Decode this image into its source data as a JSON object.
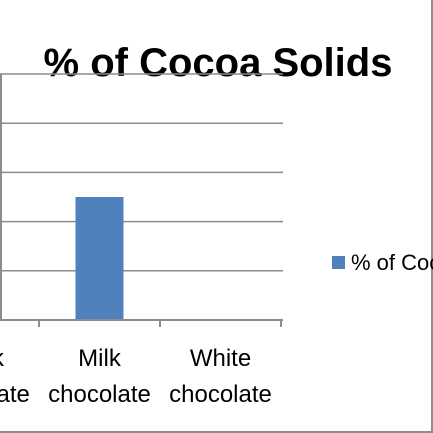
{
  "chart_data": {
    "type": "bar",
    "title": "% of Cocoa Solids",
    "categories": [
      "Dark chocolate",
      "Milk chocolate",
      "White chocolate"
    ],
    "category_lines": [
      [
        "Dark",
        "chocolate"
      ],
      [
        "Milk",
        "chocolate"
      ],
      [
        "White",
        "chocolate"
      ]
    ],
    "series": [
      {
        "name": "% of Cocoa Solids",
        "values": [
          null,
          25,
          0
        ],
        "color": "#4f81bd"
      }
    ],
    "ylim": [
      0,
      50
    ],
    "y_major_step": 10,
    "grid": true,
    "legend_position": "right"
  }
}
